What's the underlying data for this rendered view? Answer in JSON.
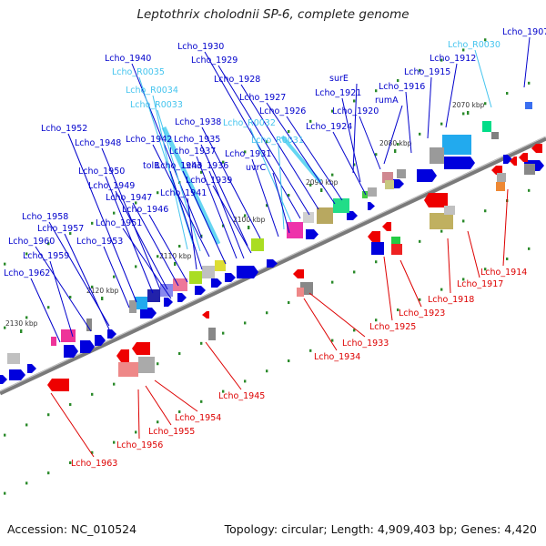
{
  "header": {
    "title": "Leptothrix cholodnii SP-6, complete genome"
  },
  "footer": {
    "accession": "Accession: NC_010524",
    "summary": "Topology: circular; Length: 4,909,403 bp; Genes: 4,420"
  },
  "colors": {
    "forward_label": "#0000cc",
    "rna_label": "#44c4ee",
    "reverse_label": "#dd0000",
    "backbone": "#7a7a7a",
    "tick": "#2a8a2a"
  },
  "map": {
    "kbp_labels": [
      "2070 kbp",
      "2080 kbp",
      "2090 kbp",
      "2100 kbp",
      "2110 kbp",
      "2120 kbp",
      "2130 kbp"
    ],
    "forward_labels": [
      {
        "text": "Lcho_1907",
        "kind": "gene"
      },
      {
        "text": "Lcho_R0030",
        "kind": "rna"
      },
      {
        "text": "Lcho_1912",
        "kind": "gene"
      },
      {
        "text": "Lcho_1915",
        "kind": "gene"
      },
      {
        "text": "Lcho_1916",
        "kind": "gene"
      },
      {
        "text": "rumA",
        "kind": "gene"
      },
      {
        "text": "Lcho_1920",
        "kind": "gene"
      },
      {
        "text": "surE",
        "kind": "gene"
      },
      {
        "text": "Lcho_1921",
        "kind": "gene"
      },
      {
        "text": "Lcho_1924",
        "kind": "gene"
      },
      {
        "text": "Lcho_1926",
        "kind": "gene"
      },
      {
        "text": "Lcho_1927",
        "kind": "gene"
      },
      {
        "text": "Lcho_1928",
        "kind": "gene"
      },
      {
        "text": "Lcho_1929",
        "kind": "gene"
      },
      {
        "text": "Lcho_1930",
        "kind": "gene"
      },
      {
        "text": "Lcho_1940",
        "kind": "gene"
      },
      {
        "text": "Lcho_R0035",
        "kind": "rna"
      },
      {
        "text": "Lcho_R0034",
        "kind": "rna"
      },
      {
        "text": "Lcho_R0033",
        "kind": "rna"
      },
      {
        "text": "Lcho_R0032",
        "kind": "rna"
      },
      {
        "text": "Lcho_R0031",
        "kind": "rna"
      },
      {
        "text": "Lcho_1938",
        "kind": "gene"
      },
      {
        "text": "Lcho_1952",
        "kind": "gene"
      },
      {
        "text": "Lcho_1942",
        "kind": "gene"
      },
      {
        "text": "Lcho_1935",
        "kind": "gene"
      },
      {
        "text": "Lcho_1948",
        "kind": "gene"
      },
      {
        "text": "Lcho_1937",
        "kind": "gene"
      },
      {
        "text": "Lcho_1931",
        "kind": "gene"
      },
      {
        "text": "tolB",
        "kind": "gene"
      },
      {
        "text": "Lcho_1943",
        "kind": "gene"
      },
      {
        "text": "Lcho_1936",
        "kind": "gene"
      },
      {
        "text": "uvrC",
        "kind": "gene"
      },
      {
        "text": "Lcho_1950",
        "kind": "gene"
      },
      {
        "text": "Lcho_1939",
        "kind": "gene"
      },
      {
        "text": "Lcho_1949",
        "kind": "gene"
      },
      {
        "text": "Lcho_1941",
        "kind": "gene"
      },
      {
        "text": "Lcho_1947",
        "kind": "gene"
      },
      {
        "text": "Lcho_1946",
        "kind": "gene"
      },
      {
        "text": "Lcho_1958",
        "kind": "gene"
      },
      {
        "text": "Lcho_1951",
        "kind": "gene"
      },
      {
        "text": "Lcho_1957",
        "kind": "gene"
      },
      {
        "text": "Lcho_1960",
        "kind": "gene"
      },
      {
        "text": "Lcho_1953",
        "kind": "gene"
      },
      {
        "text": "Lcho_1959",
        "kind": "gene"
      },
      {
        "text": "Lcho_1962",
        "kind": "gene"
      }
    ],
    "reverse_labels": [
      {
        "text": "Lcho_1914"
      },
      {
        "text": "Lcho_1917"
      },
      {
        "text": "Lcho_1918"
      },
      {
        "text": "Lcho_1923"
      },
      {
        "text": "Lcho_1925"
      },
      {
        "text": "Lcho_1933"
      },
      {
        "text": "Lcho_1934"
      },
      {
        "text": "Lcho_1945"
      },
      {
        "text": "Lcho_1954"
      },
      {
        "text": "Lcho_1955"
      },
      {
        "text": "Lcho_1956"
      },
      {
        "text": "Lcho_1963"
      }
    ]
  }
}
